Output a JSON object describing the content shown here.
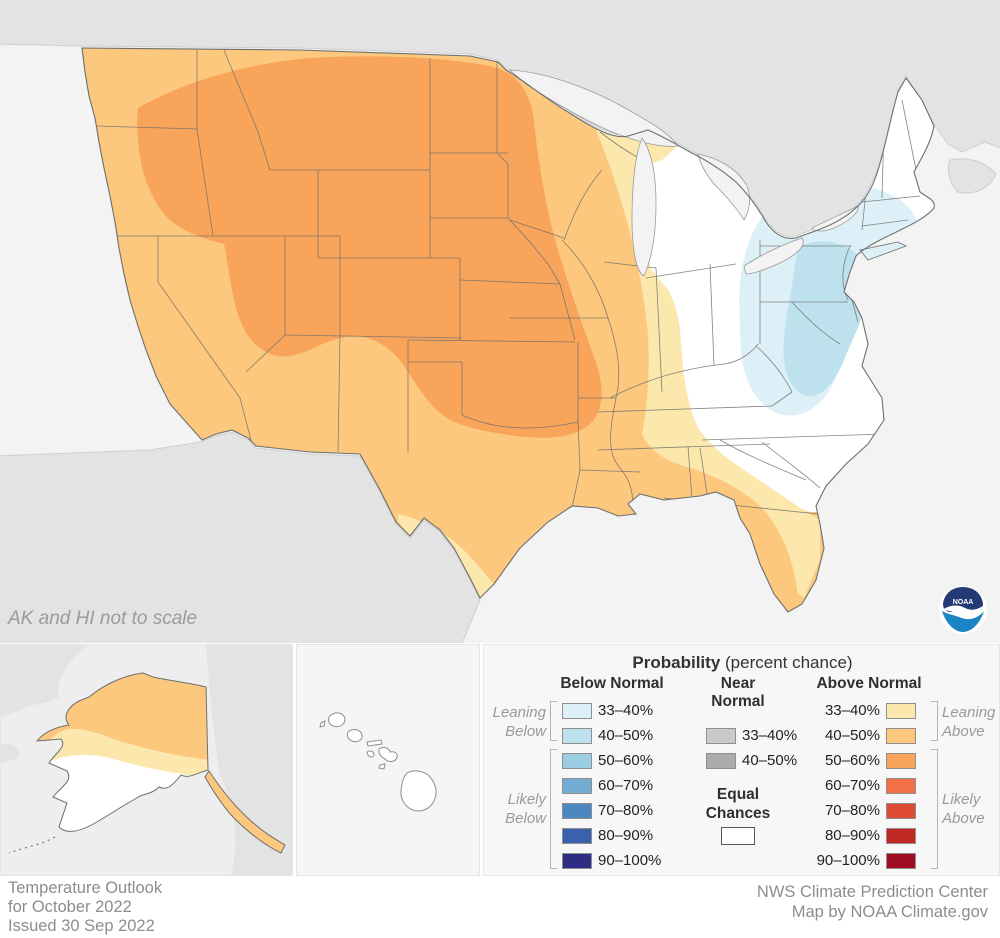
{
  "map": {
    "note": "AK and HI not to scale",
    "description": "United States temperature outlook choropleth with above-normal (orange) probabilities over the West, Plains and South, below-normal (blue) over the Mid-Atlantic/Northeast, and equal chances (white) over the East; Alaska and Hawaii insets below."
  },
  "colors": {
    "bg_map": "#F3F3F3",
    "foreign_land": "#E3E3E3",
    "us_white": "#FFFFFF",
    "above_33": "#FCE8AC",
    "above_40": "#FCC87E",
    "above_50": "#F9A45B",
    "above_60": "#F37047",
    "above_70": "#DE4B33",
    "above_80": "#C02823",
    "above_90": "#A00D22",
    "below_33": "#DDF0F7",
    "below_40": "#BEE1EE",
    "below_50": "#9CCEE3",
    "below_60": "#72ACD3",
    "below_70": "#4D87C0",
    "below_80": "#3B60AE",
    "below_90": "#2C2D83",
    "near_33": "#C9C9C9",
    "near_40": "#ABABAB",
    "equal": "#FFFFFF"
  },
  "legend": {
    "title_bold": "Probability",
    "title_rest": " (percent chance)",
    "below_header": "Below Normal",
    "near_header_line1": "Near",
    "near_header_line2": "Normal",
    "above_header": "Above Normal",
    "below_rows": [
      {
        "label": "33–40%",
        "color_key": "below_33"
      },
      {
        "label": "40–50%",
        "color_key": "below_40"
      },
      {
        "label": "50–60%",
        "color_key": "below_50"
      },
      {
        "label": "60–70%",
        "color_key": "below_60"
      },
      {
        "label": "70–80%",
        "color_key": "below_70"
      },
      {
        "label": "80–90%",
        "color_key": "below_80"
      },
      {
        "label": "90–100%",
        "color_key": "below_90"
      }
    ],
    "near_rows": [
      {
        "label": "33–40%",
        "color_key": "near_33"
      },
      {
        "label": "40–50%",
        "color_key": "near_40"
      }
    ],
    "above_rows": [
      {
        "label": "33–40%",
        "color_key": "above_33"
      },
      {
        "label": "40–50%",
        "color_key": "above_40"
      },
      {
        "label": "50–60%",
        "color_key": "above_50"
      },
      {
        "label": "60–70%",
        "color_key": "above_60"
      },
      {
        "label": "70–80%",
        "color_key": "above_70"
      },
      {
        "label": "80–90%",
        "color_key": "above_80"
      },
      {
        "label": "90–100%",
        "color_key": "above_90"
      }
    ],
    "equal_line1": "Equal",
    "equal_line2": "Chances",
    "leaning_below_line1": "Leaning",
    "leaning_below_line2": "Below",
    "likely_below_line1": "Likely",
    "likely_below_line2": "Below",
    "leaning_above_line1": "Leaning",
    "leaning_above_line2": "Above",
    "likely_above_line1": "Likely",
    "likely_above_line2": "Above"
  },
  "logo": {
    "text": "NOAA"
  },
  "footer": {
    "left_line1": "Temperature Outlook",
    "left_line2": "for October 2022",
    "left_line3": "Issued 30 Sep 2022",
    "right_line1": "NWS Climate Prediction Center",
    "right_line2": "Map by NOAA Climate.gov"
  }
}
